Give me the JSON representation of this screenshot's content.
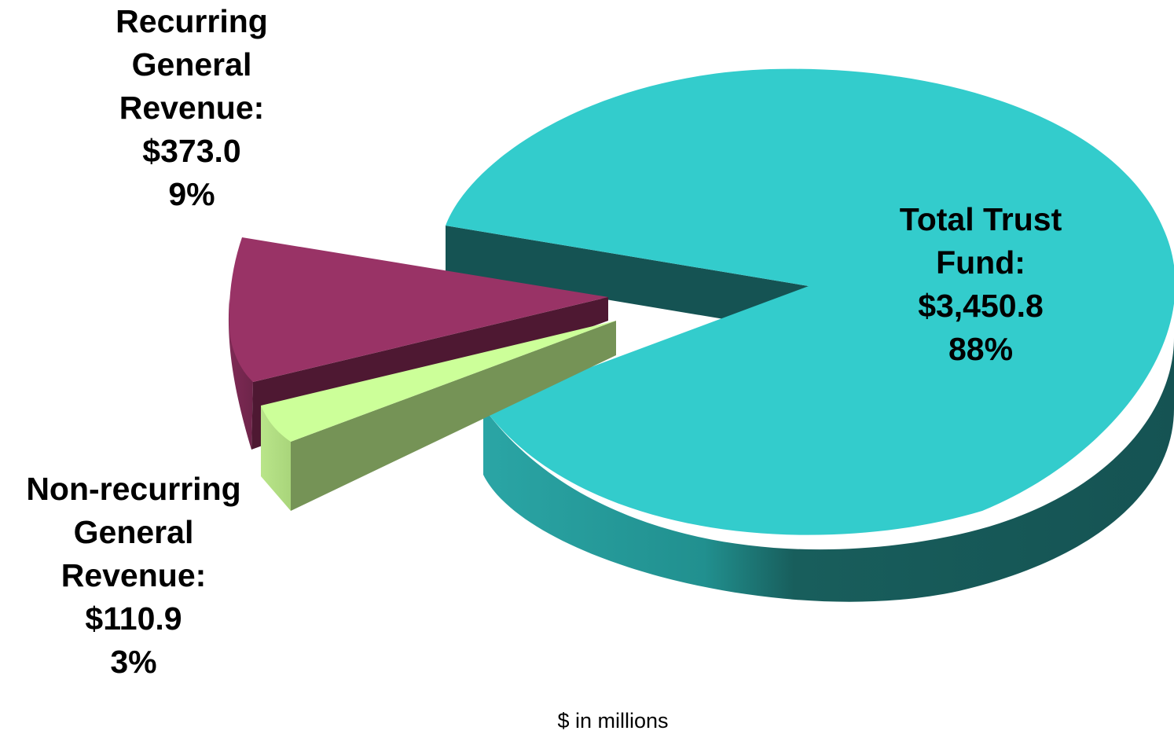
{
  "chart_data": {
    "type": "pie",
    "style": "3d-exploded",
    "units_note": "$ in millions",
    "slices": [
      {
        "category_lines": [
          "Total Trust",
          "Fund:"
        ],
        "value_label": "$3,450.8",
        "percent_label": "88%",
        "value": 3450.8,
        "percent": 88,
        "color": "#33CCCC"
      },
      {
        "category_lines": [
          "Recurring",
          "General",
          "Revenue:"
        ],
        "value_label": "$373.0",
        "percent_label": "9%",
        "value": 373.0,
        "percent": 9,
        "color": "#993366"
      },
      {
        "category_lines": [
          "Non-recurring",
          "General",
          "Revenue:"
        ],
        "value_label": "$110.9",
        "percent_label": "3%",
        "value": 110.9,
        "percent": 3,
        "color": "#CCFF99"
      }
    ]
  }
}
